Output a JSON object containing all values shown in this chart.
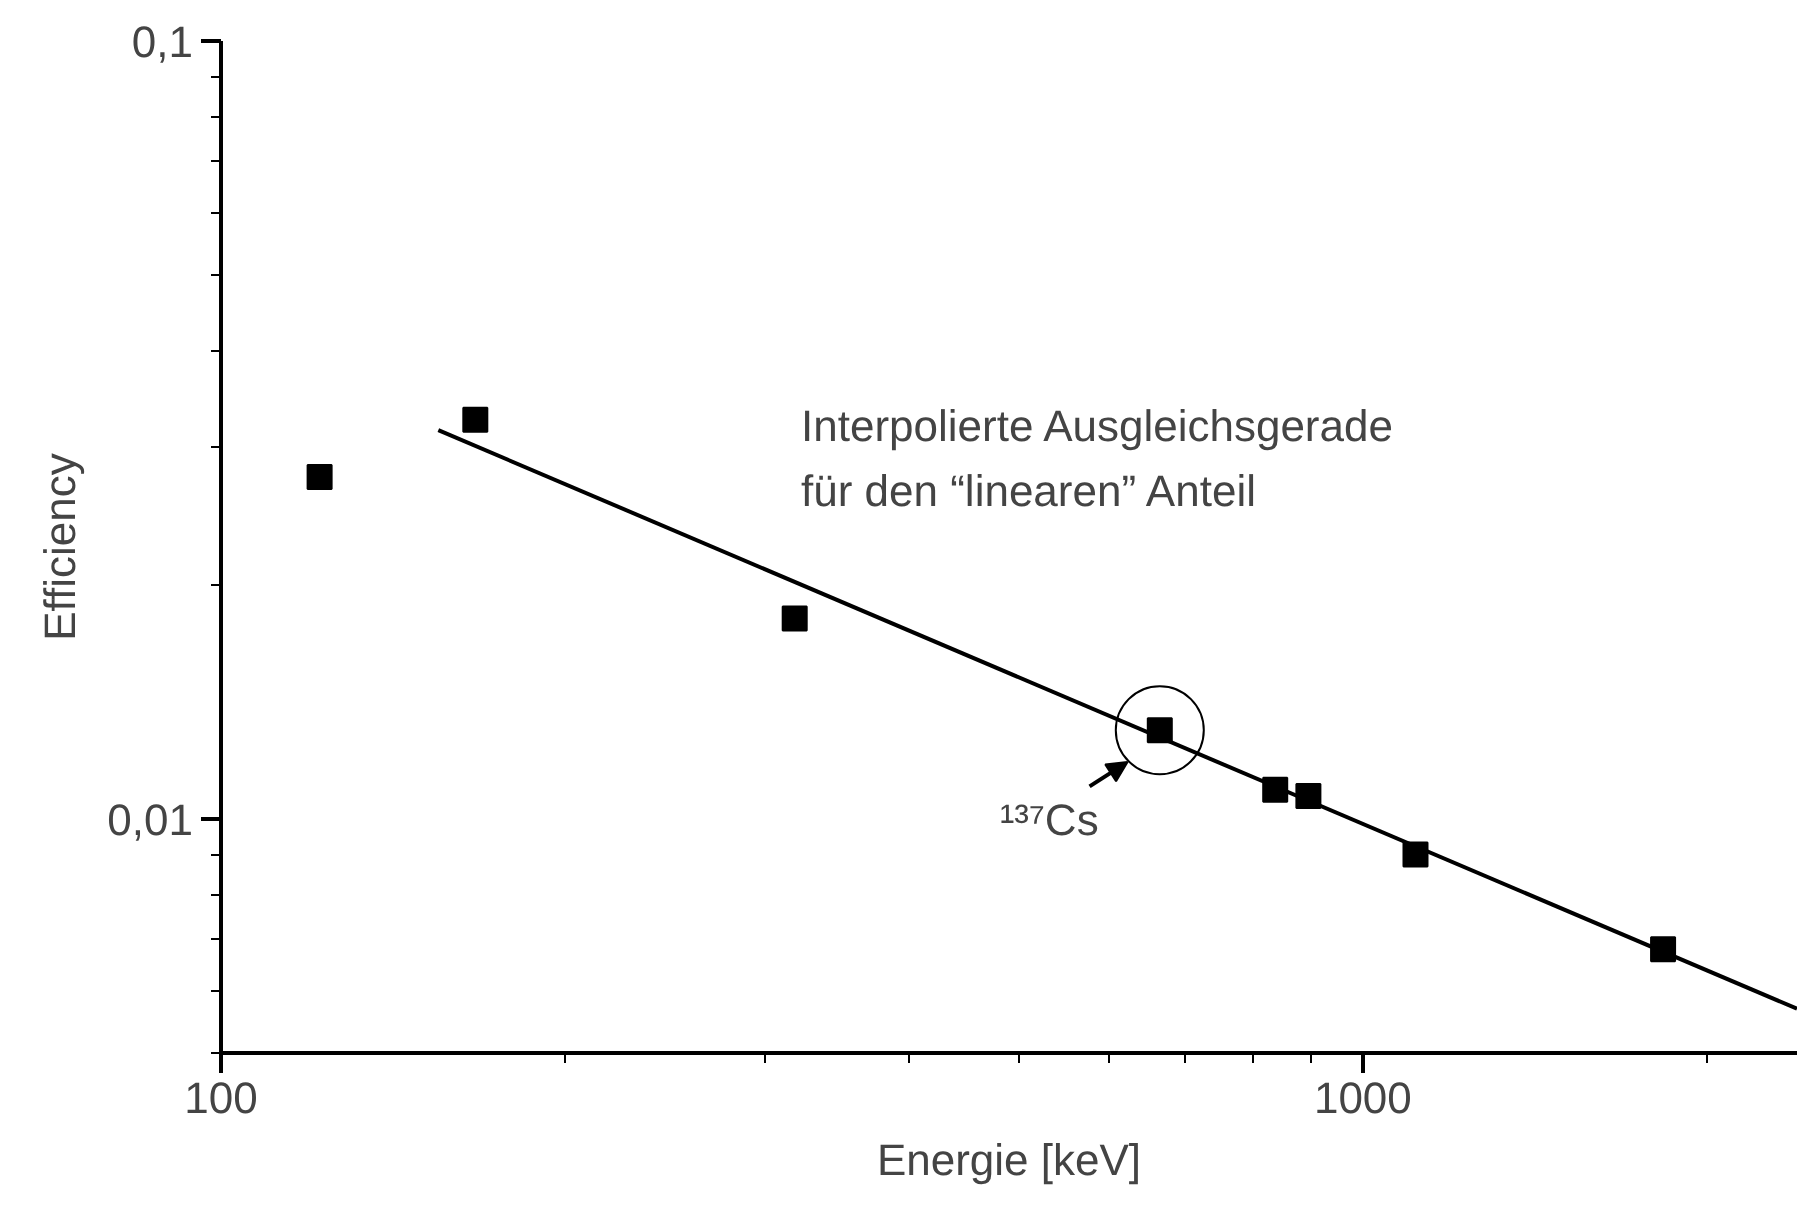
{
  "chart_data": {
    "type": "scatter",
    "xlabel": "Energie [keV]",
    "ylabel": "Efficiency",
    "log": "xy",
    "grid": false,
    "marker": "square",
    "xlim": [
      100,
      2400
    ],
    "ylim": [
      0.005,
      0.1
    ],
    "xticks": [
      100,
      1000
    ],
    "yticks": [
      {
        "value": 0.01,
        "label": "0,01"
      },
      {
        "value": 0.1,
        "label": "0,1"
      }
    ],
    "series": [
      {
        "color": "#000000",
        "x": [
          122,
          167,
          318,
          664,
          838,
          896,
          1112,
          1832
        ],
        "values": [
          0.0275,
          0.0326,
          0.0181,
          0.013,
          0.0109,
          0.0107,
          0.009,
          0.0068
        ]
      },
      {
        "type": "line",
        "color": "#000000",
        "marker": "none",
        "x": [
          155,
          2400
        ],
        "values": [
          0.0316,
          0.0057
        ]
      }
    ],
    "annotations": [
      "Interpolierte Ausgleichsgerade\nfür den “linearen” Anteil",
      {
        "text": "¹³⁷Cs",
        "x": 664,
        "y": 0.013
      }
    ]
  }
}
